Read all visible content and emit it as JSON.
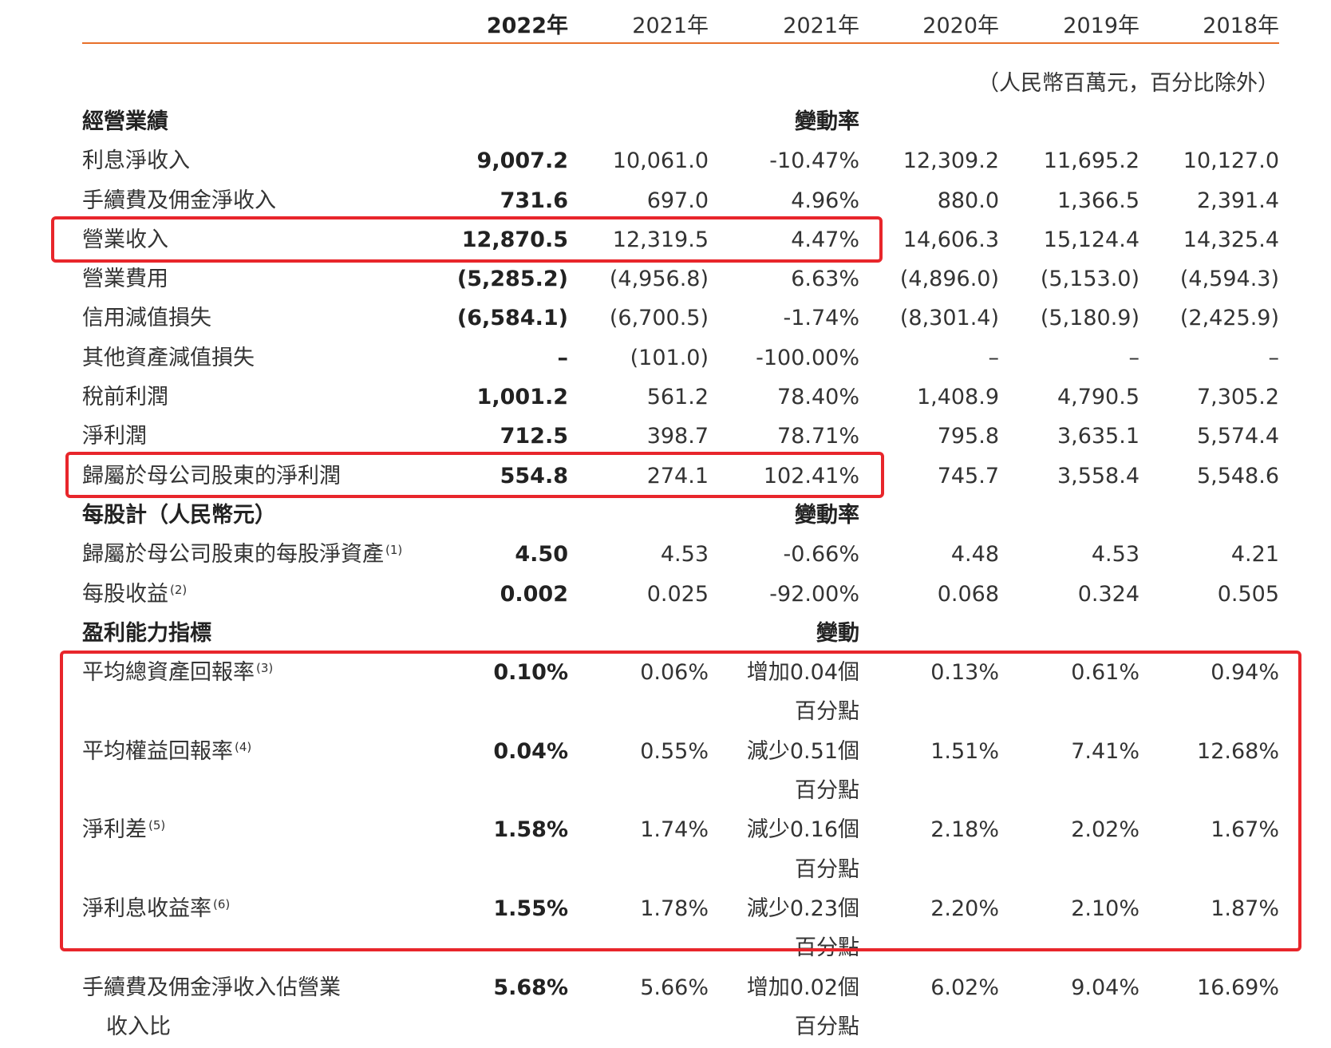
{
  "table": {
    "columns": [
      "2022年",
      "2021年",
      "2021年",
      "2020年",
      "2019年",
      "2018年"
    ],
    "unit_note": "（人民幣百萬元，百分比除外）",
    "sections": [
      {
        "title": "經營業績",
        "change_header": "變動率",
        "rows": [
          {
            "label": "利息淨收入",
            "cells": [
              "9,007.2",
              "10,061.0",
              "-10.47%",
              "12,309.2",
              "11,695.2",
              "10,127.0"
            ]
          },
          {
            "label": "手續費及佣金淨收入",
            "cells": [
              "731.6",
              "697.0",
              "4.96%",
              "880.0",
              "1,366.5",
              "2,391.4"
            ]
          },
          {
            "label": "營業收入",
            "cells": [
              "12,870.5",
              "12,319.5",
              "4.47%",
              "14,606.3",
              "15,124.4",
              "14,325.4"
            ]
          },
          {
            "label": "營業費用",
            "cells": [
              "(5,285.2)",
              "(4,956.8)",
              "6.63%",
              "(4,896.0)",
              "(5,153.0)",
              "(4,594.3)"
            ]
          },
          {
            "label": "信用減值損失",
            "cells": [
              "(6,584.1)",
              "(6,700.5)",
              "-1.74%",
              "(8,301.4)",
              "(5,180.9)",
              "(2,425.9)"
            ]
          },
          {
            "label": "其他資產減值損失",
            "cells": [
              "–",
              "(101.0)",
              "-100.00%",
              "–",
              "–",
              "–"
            ]
          },
          {
            "label": "稅前利潤",
            "cells": [
              "1,001.2",
              "561.2",
              "78.40%",
              "1,408.9",
              "4,790.5",
              "7,305.2"
            ]
          },
          {
            "label": "淨利潤",
            "cells": [
              "712.5",
              "398.7",
              "78.71%",
              "795.8",
              "3,635.1",
              "5,574.4"
            ]
          },
          {
            "label": "歸屬於母公司股東的淨利潤",
            "cells": [
              "554.8",
              "274.1",
              "102.41%",
              "745.7",
              "3,558.4",
              "5,548.6"
            ]
          }
        ]
      },
      {
        "title": "每股計（人民幣元）",
        "change_header": "變動率",
        "rows": [
          {
            "label": "歸屬於母公司股東的每股淨資產",
            "note": "(1)",
            "cells": [
              "4.50",
              "4.53",
              "-0.66%",
              "4.48",
              "4.53",
              "4.21"
            ]
          },
          {
            "label": "每股收益",
            "note": "(2)",
            "cells": [
              "0.002",
              "0.025",
              "-92.00%",
              "0.068",
              "0.324",
              "0.505"
            ]
          }
        ]
      },
      {
        "title": "盈利能力指標",
        "change_header": "變動",
        "rows": [
          {
            "label": "平均總資產回報率",
            "note": "(3)",
            "cells": [
              "0.10%",
              "0.06%",
              "增加0.04個百分點",
              "0.13%",
              "0.61%",
              "0.94%"
            ]
          },
          {
            "label": "平均權益回報率",
            "note": "(4)",
            "cells": [
              "0.04%",
              "0.55%",
              "減少0.51個百分點",
              "1.51%",
              "7.41%",
              "12.68%"
            ]
          },
          {
            "label": "淨利差",
            "note": "(5)",
            "cells": [
              "1.58%",
              "1.74%",
              "減少0.16個百分點",
              "2.18%",
              "2.02%",
              "1.67%"
            ]
          },
          {
            "label": "淨利息收益率",
            "note": "(6)",
            "cells": [
              "1.55%",
              "1.78%",
              "減少0.23個百分點",
              "2.20%",
              "2.10%",
              "1.87%"
            ]
          },
          {
            "label": "手續費及佣金淨收入佔營業收入比",
            "cells": [
              "5.68%",
              "5.66%",
              "增加0.02個百分點",
              "6.02%",
              "9.04%",
              "16.69%"
            ]
          }
        ]
      }
    ]
  }
}
